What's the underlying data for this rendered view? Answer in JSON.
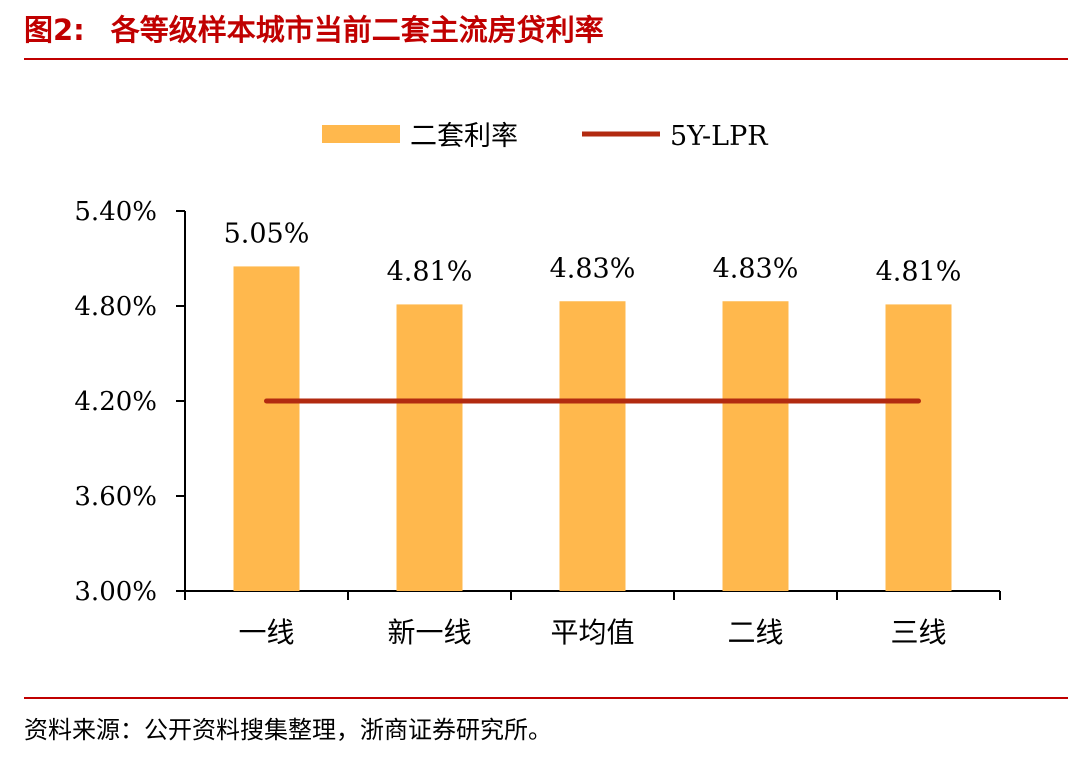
{
  "figure": {
    "number": "图2:",
    "title": "各等级样本城市当前二套主流房贷利率",
    "source": "资料来源：公开资料搜集整理，浙商证券研究所。"
  },
  "colors": {
    "bar": "#ffb84d",
    "line": "#b22a10",
    "accent": "#c00000"
  },
  "chart_data": {
    "type": "bar",
    "title": "",
    "xlabel": "",
    "ylabel": "",
    "categories": [
      "一线",
      "新一线",
      "平均值",
      "二线",
      "三线"
    ],
    "series": [
      {
        "name": "二套利率",
        "type": "bar",
        "values": [
          5.05,
          4.81,
          4.83,
          4.83,
          4.81
        ],
        "labels": [
          "5.05%",
          "4.81%",
          "4.83%",
          "4.83%",
          "4.81%"
        ]
      },
      {
        "name": "5Y-LPR",
        "type": "line",
        "values": [
          4.2,
          4.2,
          4.2,
          4.2,
          4.2
        ]
      }
    ],
    "ylim": [
      3.0,
      5.4
    ],
    "yticks": [
      3.0,
      3.6,
      4.2,
      4.8,
      5.4
    ],
    "ytick_labels": [
      "3.00%",
      "3.60%",
      "4.20%",
      "4.80%",
      "5.40%"
    ],
    "grid": false,
    "legend": "top-center"
  }
}
